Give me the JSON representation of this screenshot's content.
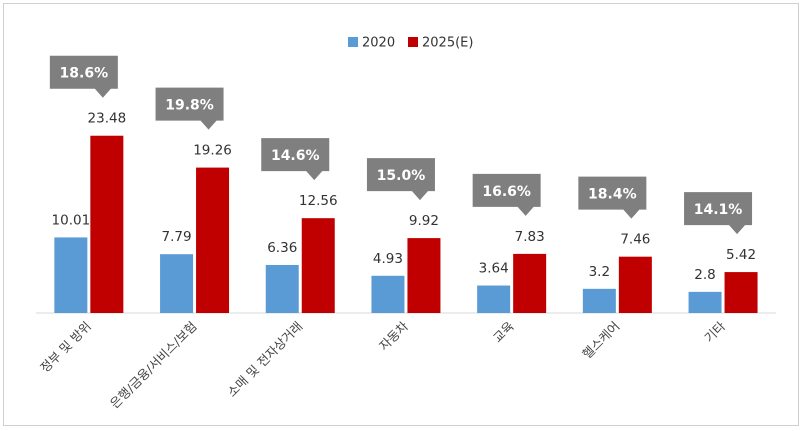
{
  "chart_data": {
    "type": "bar",
    "categories": [
      "정부 및 방위",
      "은행/금융/서비스/보험",
      "소매 및 전자상거래",
      "자동차",
      "교육",
      "헬스케어",
      "기타"
    ],
    "series": [
      {
        "name": "2020",
        "values": [
          10.01,
          7.79,
          6.36,
          4.93,
          3.64,
          3.2,
          2.8
        ],
        "labels": [
          "10.01",
          "7.79",
          "6.36",
          "4.93",
          "3.64",
          "3.2",
          "2.8"
        ]
      },
      {
        "name": "2025(E)",
        "values": [
          23.48,
          19.26,
          12.56,
          9.92,
          7.83,
          7.46,
          5.42
        ],
        "labels": [
          "23.48",
          "19.26",
          "12.56",
          "9.92",
          "7.83",
          "7.46",
          "5.42"
        ]
      }
    ],
    "growth_rates": [
      "18.6%",
      "19.8%",
      "14.6%",
      "15.0%",
      "16.6%",
      "18.4%",
      "14.1%"
    ],
    "legend_position": "top",
    "grid": false,
    "colors": {
      "2020": "#5b9bd5",
      "2025(E)": "#c00000",
      "callout": "#7f7f7f"
    }
  }
}
